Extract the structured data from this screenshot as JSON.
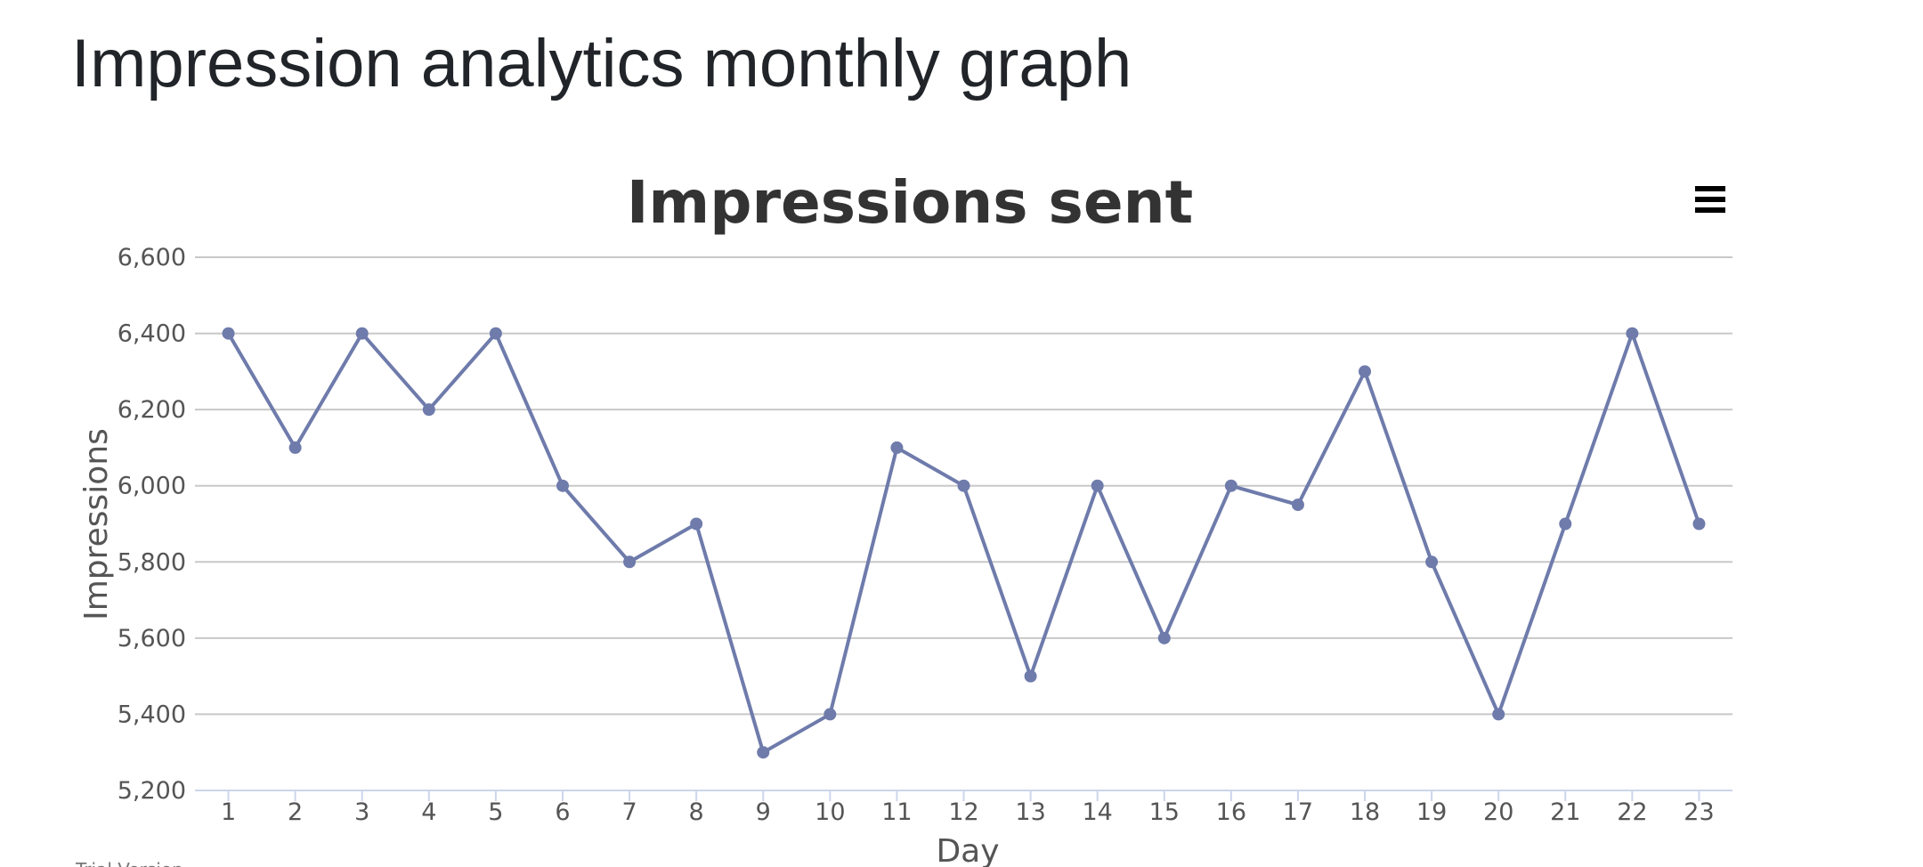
{
  "page_title": "Impression analytics monthly graph",
  "footer_note": "Trial Version",
  "chart_data": {
    "type": "line",
    "title": "Impressions sent",
    "x_label": "Day",
    "y_label": "Impressions",
    "categories": [
      "1",
      "2",
      "3",
      "4",
      "5",
      "6",
      "7",
      "8",
      "9",
      "10",
      "11",
      "12",
      "13",
      "14",
      "15",
      "16",
      "17",
      "18",
      "19",
      "20",
      "21",
      "22",
      "23"
    ],
    "series": [
      {
        "name": "Impressions",
        "color": "#6e7bab",
        "values": [
          6400,
          6100,
          6400,
          6200,
          6400,
          6000,
          5800,
          5900,
          5300,
          5400,
          6100,
          6000,
          5500,
          6000,
          5600,
          6000,
          5950,
          6300,
          5800,
          5400,
          5900,
          6400,
          5900
        ]
      }
    ],
    "ylim": [
      5200,
      6600
    ],
    "yticks": [
      {
        "value": 5200,
        "label": "5,200"
      },
      {
        "value": 5400,
        "label": "5,400"
      },
      {
        "value": 5600,
        "label": "5,600"
      },
      {
        "value": 5800,
        "label": "5,800"
      },
      {
        "value": 6000,
        "label": "6,000"
      },
      {
        "value": 6200,
        "label": "6,200"
      },
      {
        "value": 6400,
        "label": "6,400"
      },
      {
        "value": 6600,
        "label": "6,600"
      }
    ],
    "grid": true
  }
}
